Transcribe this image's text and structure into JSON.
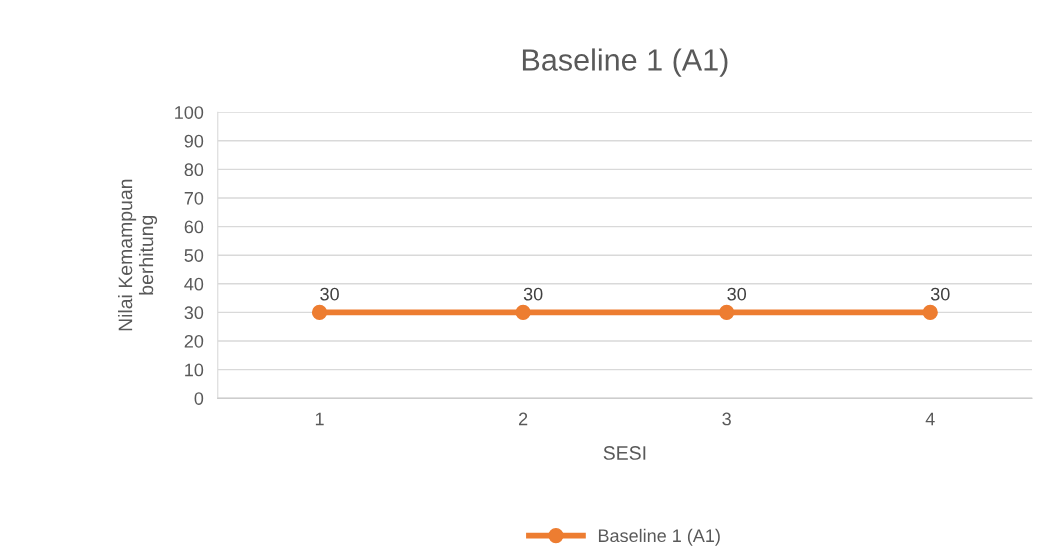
{
  "chart_data": {
    "type": "line",
    "title": "Baseline 1 (A1)",
    "xlabel": "SESI",
    "ylabel": "Nilai Kemampuan\nberhitung",
    "categories": [
      "1",
      "2",
      "3",
      "4"
    ],
    "series": [
      {
        "name": "Baseline 1 (A1)",
        "color": "#ed7d31",
        "values": [
          30,
          30,
          30,
          30
        ]
      }
    ],
    "ylim": [
      0,
      100
    ],
    "yticks": [
      0,
      10,
      20,
      30,
      40,
      50,
      60,
      70,
      80,
      90,
      100
    ],
    "grid": "y",
    "legend": "bottom",
    "marker": "circle",
    "line_style": "solid",
    "data_labels": true
  }
}
